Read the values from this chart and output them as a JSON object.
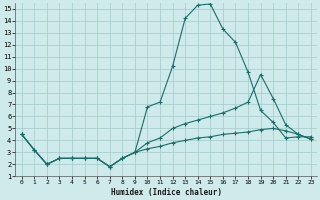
{
  "xlabel": "Humidex (Indice chaleur)",
  "bg_color": "#ceeaea",
  "grid_color": "#aacece",
  "line_color": "#1a6e6a",
  "xlim": [
    -0.5,
    23.5
  ],
  "ylim": [
    1,
    15.5
  ],
  "xticks": [
    0,
    1,
    2,
    3,
    4,
    5,
    6,
    7,
    8,
    9,
    10,
    11,
    12,
    13,
    14,
    15,
    16,
    17,
    18,
    19,
    20,
    21,
    22,
    23
  ],
  "yticks": [
    1,
    2,
    3,
    4,
    5,
    6,
    7,
    8,
    9,
    10,
    11,
    12,
    13,
    14,
    15
  ],
  "line1_x": [
    0,
    1,
    2,
    3,
    4,
    5,
    6,
    7,
    8,
    9,
    10,
    11,
    12,
    13,
    14,
    15,
    16,
    17,
    18,
    19,
    20,
    21,
    22,
    23
  ],
  "line1_y": [
    4.5,
    3.2,
    2.0,
    2.5,
    2.5,
    2.5,
    2.5,
    1.8,
    2.5,
    3.0,
    6.8,
    7.2,
    10.2,
    14.2,
    15.3,
    15.4,
    13.3,
    12.2,
    9.7,
    6.5,
    5.5,
    4.2,
    4.3,
    4.3
  ],
  "line2_x": [
    0,
    1,
    2,
    3,
    4,
    5,
    6,
    7,
    8,
    9,
    10,
    11,
    12,
    13,
    14,
    15,
    16,
    17,
    18,
    19,
    20,
    21,
    22,
    23
  ],
  "line2_y": [
    4.5,
    3.2,
    2.0,
    2.5,
    2.5,
    2.5,
    2.5,
    1.8,
    2.5,
    3.0,
    3.8,
    4.2,
    5.0,
    5.4,
    5.7,
    6.0,
    6.3,
    6.7,
    7.2,
    9.5,
    7.5,
    5.3,
    4.5,
    4.1
  ],
  "line3_x": [
    0,
    1,
    2,
    3,
    4,
    5,
    6,
    7,
    8,
    9,
    10,
    11,
    12,
    13,
    14,
    15,
    16,
    17,
    18,
    19,
    20,
    21,
    22,
    23
  ],
  "line3_y": [
    4.5,
    3.2,
    2.0,
    2.5,
    2.5,
    2.5,
    2.5,
    1.8,
    2.5,
    3.0,
    3.3,
    3.5,
    3.8,
    4.0,
    4.2,
    4.3,
    4.5,
    4.6,
    4.7,
    4.9,
    5.0,
    4.8,
    4.5,
    4.1
  ]
}
